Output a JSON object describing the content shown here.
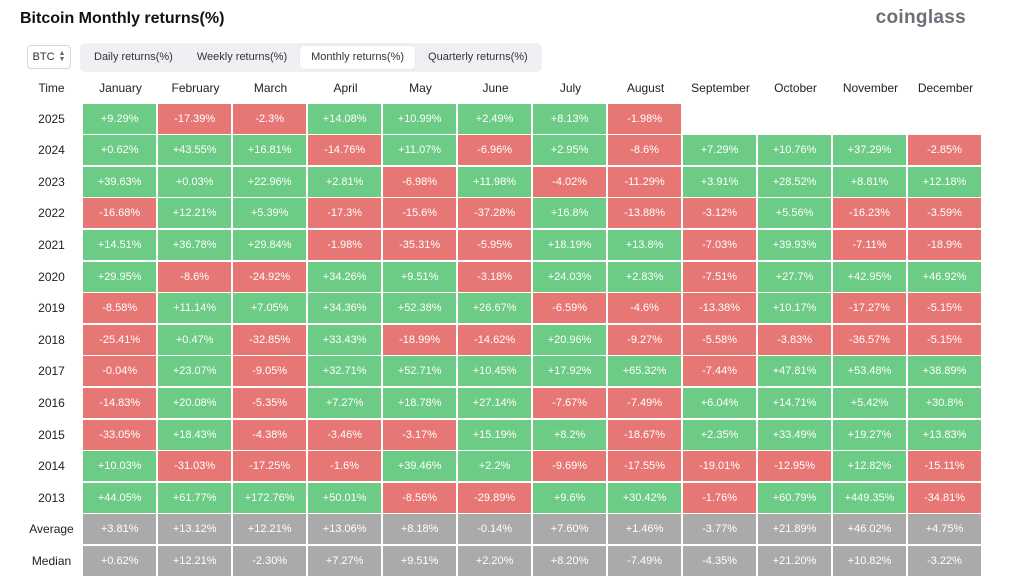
{
  "title": "Bitcoin Monthly returns(%)",
  "brand": "coinglass",
  "coin_selector": {
    "value": "BTC"
  },
  "tabs": [
    {
      "label": "Daily returns(%)",
      "active": false
    },
    {
      "label": "Weekly returns(%)",
      "active": false
    },
    {
      "label": "Monthly returns(%)",
      "active": true
    },
    {
      "label": "Quarterly returns(%)",
      "active": false
    }
  ],
  "colors": {
    "positive": "#6ccb85",
    "negative": "#e77774",
    "stat": "#aaaaaa"
  },
  "table": {
    "time_header": "Time",
    "months": [
      "January",
      "February",
      "March",
      "April",
      "May",
      "June",
      "July",
      "August",
      "September",
      "October",
      "November",
      "December"
    ],
    "rows": [
      {
        "label": "2025",
        "values": [
          "+9.29%",
          "-17.39%",
          "-2.3%",
          "+14.08%",
          "+10.99%",
          "+2.49%",
          "+8.13%",
          "-1.98%",
          "",
          "",
          "",
          ""
        ]
      },
      {
        "label": "2024",
        "values": [
          "+0.62%",
          "+43.55%",
          "+16.81%",
          "-14.76%",
          "+11.07%",
          "-6.96%",
          "+2.95%",
          "-8.6%",
          "+7.29%",
          "+10.76%",
          "+37.29%",
          "-2.85%"
        ]
      },
      {
        "label": "2023",
        "values": [
          "+39.63%",
          "+0.03%",
          "+22.96%",
          "+2.81%",
          "-6.98%",
          "+11.98%",
          "-4.02%",
          "-11.29%",
          "+3.91%",
          "+28.52%",
          "+8.81%",
          "+12.18%"
        ]
      },
      {
        "label": "2022",
        "values": [
          "-16.68%",
          "+12.21%",
          "+5.39%",
          "-17.3%",
          "-15.6%",
          "-37.28%",
          "+16.8%",
          "-13.88%",
          "-3.12%",
          "+5.56%",
          "-16.23%",
          "-3.59%"
        ]
      },
      {
        "label": "2021",
        "values": [
          "+14.51%",
          "+36.78%",
          "+29.84%",
          "-1.98%",
          "-35.31%",
          "-5.95%",
          "+18.19%",
          "+13.8%",
          "-7.03%",
          "+39.93%",
          "-7.11%",
          "-18.9%"
        ]
      },
      {
        "label": "2020",
        "values": [
          "+29.95%",
          "-8.6%",
          "-24.92%",
          "+34.26%",
          "+9.51%",
          "-3.18%",
          "+24.03%",
          "+2.83%",
          "-7.51%",
          "+27.7%",
          "+42.95%",
          "+46.92%"
        ]
      },
      {
        "label": "2019",
        "values": [
          "-8.58%",
          "+11.14%",
          "+7.05%",
          "+34.36%",
          "+52.38%",
          "+26.67%",
          "-6.59%",
          "-4.6%",
          "-13.38%",
          "+10.17%",
          "-17.27%",
          "-5.15%"
        ]
      },
      {
        "label": "2018",
        "values": [
          "-25.41%",
          "+0.47%",
          "-32.85%",
          "+33.43%",
          "-18.99%",
          "-14.62%",
          "+20.96%",
          "-9.27%",
          "-5.58%",
          "-3.83%",
          "-36.57%",
          "-5.15%"
        ]
      },
      {
        "label": "2017",
        "values": [
          "-0.04%",
          "+23.07%",
          "-9.05%",
          "+32.71%",
          "+52.71%",
          "+10.45%",
          "+17.92%",
          "+65.32%",
          "-7.44%",
          "+47.81%",
          "+53.48%",
          "+38.89%"
        ]
      },
      {
        "label": "2016",
        "values": [
          "-14.83%",
          "+20.08%",
          "-5.35%",
          "+7.27%",
          "+18.78%",
          "+27.14%",
          "-7.67%",
          "-7.49%",
          "+6.04%",
          "+14.71%",
          "+5.42%",
          "+30.8%"
        ]
      },
      {
        "label": "2015",
        "values": [
          "-33.05%",
          "+18.43%",
          "-4.38%",
          "-3.46%",
          "-3.17%",
          "+15.19%",
          "+8.2%",
          "-18.67%",
          "+2.35%",
          "+33.49%",
          "+19.27%",
          "+13.83%"
        ]
      },
      {
        "label": "2014",
        "values": [
          "+10.03%",
          "-31.03%",
          "-17.25%",
          "-1.6%",
          "+39.46%",
          "+2.2%",
          "-9.69%",
          "-17.55%",
          "-19.01%",
          "-12.95%",
          "+12.82%",
          "-15.11%"
        ]
      },
      {
        "label": "2013",
        "values": [
          "+44.05%",
          "+61.77%",
          "+172.76%",
          "+50.01%",
          "-8.56%",
          "-29.89%",
          "+9.6%",
          "+30.42%",
          "-1.76%",
          "+60.79%",
          "+449.35%",
          "-34.81%"
        ]
      }
    ],
    "stats": [
      {
        "label": "Average",
        "values": [
          "+3.81%",
          "+13.12%",
          "+12.21%",
          "+13.06%",
          "+8.18%",
          "-0.14%",
          "+7.60%",
          "+1.46%",
          "-3.77%",
          "+21.89%",
          "+46.02%",
          "+4.75%"
        ]
      },
      {
        "label": "Median",
        "values": [
          "+0.62%",
          "+12.21%",
          "-2.30%",
          "+7.27%",
          "+9.51%",
          "+2.20%",
          "+8.20%",
          "-7.49%",
          "-4.35%",
          "+21.20%",
          "+10.82%",
          "-3.22%"
        ]
      }
    ]
  }
}
